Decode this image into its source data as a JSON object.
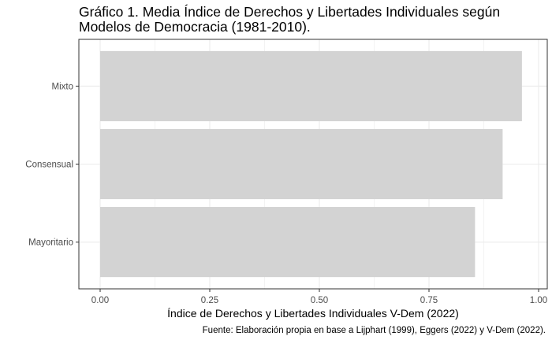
{
  "chart_data": {
    "type": "bar",
    "orientation": "horizontal",
    "title": "Gráfico 1. Media Índice de Derechos y Libertades Individuales según Modelos de Democracia (1981-2010).",
    "xlabel": "Índice de Derechos y Libertades Individuales V-Dem (2022)",
    "ylabel": "",
    "categories": [
      "Mayoritario",
      "Consensual",
      "Mixto"
    ],
    "values": [
      0.855,
      0.918,
      0.962
    ],
    "xlim": [
      0,
      1
    ],
    "xticks": [
      "0.00",
      "0.25",
      "0.50",
      "0.75",
      "1.00"
    ],
    "grid": true,
    "legend": "none",
    "caption": "Fuente: Elaboración propia en base a Lijphart (1999), Eggers (2022) y V-Dem (2022).",
    "colors": {
      "bar": "#d3d3d3",
      "grid": "#ebebeb",
      "panel_border": "#333333"
    }
  }
}
